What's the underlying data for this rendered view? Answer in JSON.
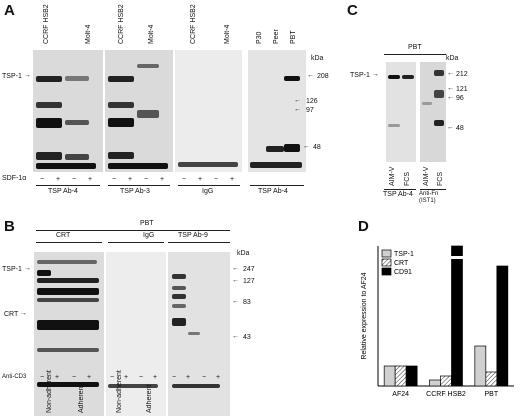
{
  "panel_a": {
    "label": "A",
    "kda": "kDa",
    "lanes": [
      "CCRF HSB2",
      "Molt-4",
      "CCRF HSB2",
      "Molt-4",
      "CCRF HSB2",
      "Molt-4",
      "P30",
      "Peer",
      "PBT"
    ],
    "protein": "TSP-1",
    "treatment": "SDF-1α",
    "signs": [
      "−",
      "+",
      "−",
      "+",
      "−",
      "+",
      "−",
      "+",
      "−",
      "+",
      "−",
      "+"
    ],
    "groups": [
      "TSP Ab-4",
      "TSP Ab-3",
      "IgG",
      "TSP Ab-4"
    ],
    "markers": [
      "208",
      "126",
      "97",
      "48"
    ]
  },
  "panel_b": {
    "label": "B",
    "kda": "kDa",
    "pbt": "PBT",
    "groups": [
      "CRT",
      "IgG",
      "TSP Ab-9"
    ],
    "protein_tsp": "TSP-1",
    "protein_crt": "CRT",
    "treatment": "Anti-CD3",
    "signs": [
      "−",
      "+",
      "−",
      "+",
      "−",
      "+",
      "−",
      "+",
      "−",
      "+",
      "−",
      "+"
    ],
    "conditions": [
      "Non-adherent",
      "Adherent",
      "Non-adherent",
      "Adherent"
    ],
    "markers": [
      "247",
      "127",
      "83",
      "43"
    ]
  },
  "panel_c": {
    "label": "C",
    "kda": "kDa",
    "pbt": "PBT",
    "protein": "TSP-1",
    "lanes": [
      "AIM-V",
      "FCS",
      "AIM-V",
      "FCS"
    ],
    "groups": [
      "TSP Ab-4",
      "Anti-Fn (IST1)"
    ],
    "markers": [
      "212",
      "121",
      "96",
      "48"
    ]
  },
  "panel_d": {
    "label": "D",
    "chart_data": {
      "type": "bar",
      "categories": [
        "AF24",
        "CCRF HSB2",
        "PBT"
      ],
      "series": [
        {
          "name": "TSP-1",
          "values": [
            1,
            0.3,
            2
          ]
        },
        {
          "name": "CRT",
          "values": [
            1,
            0.5,
            0.7
          ]
        },
        {
          "name": "CD91",
          "values": [
            1,
            21,
            6
          ]
        }
      ],
      "ylabel": "Relative expression to AF24",
      "ylim": [
        0,
        7
      ],
      "axis_break": true,
      "legend": "top-left",
      "colors": [
        "#d0d0d0",
        "#ffffff",
        "#000000"
      ],
      "patterns": [
        "solid",
        "hatched",
        "solid"
      ]
    }
  }
}
